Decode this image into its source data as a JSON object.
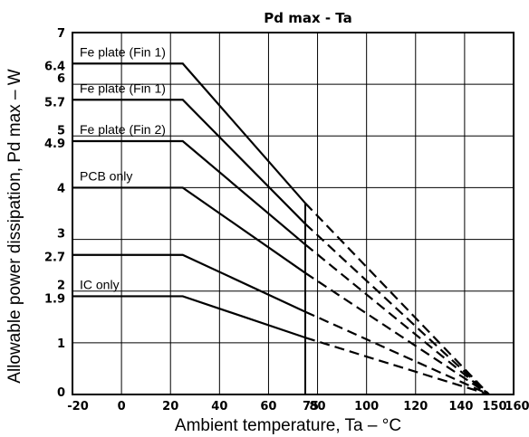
{
  "chart_data": {
    "type": "line",
    "title": "Pd max - Ta",
    "xlabel": "Ambient temperature, Ta – °C",
    "ylabel": "Allowable power dissipation, Pd max – W",
    "xlim": [
      -20,
      160
    ],
    "ylim": [
      0,
      7
    ],
    "x_ticks": [
      "-20",
      "0",
      "20",
      "40",
      "60",
      "75",
      "80",
      "100",
      "120",
      "140",
      "150",
      "160"
    ],
    "y_ticks": [
      "0",
      "1",
      "1.9",
      "2",
      "2.7",
      "3",
      "4",
      "4.9",
      "5",
      "5.7",
      "6",
      "6.4",
      "7"
    ],
    "grid": true,
    "cutoff_line_x": 75,
    "series": [
      {
        "name": "Fe plate (Fin 1)",
        "x": [
          -20,
          25,
          75,
          150
        ],
        "y": [
          6.4,
          6.4,
          3.7,
          0
        ]
      },
      {
        "name": "Fe plate (Fin 1)",
        "x": [
          -20,
          25,
          75,
          150
        ],
        "y": [
          5.7,
          5.7,
          3.3,
          0
        ]
      },
      {
        "name": "Fe plate (Fin 2)",
        "x": [
          -20,
          25,
          75,
          150
        ],
        "y": [
          4.9,
          4.9,
          2.9,
          0
        ]
      },
      {
        "name": "PCB only",
        "x": [
          -20,
          25,
          75,
          150
        ],
        "y": [
          4.0,
          4.0,
          2.35,
          0
        ]
      },
      {
        "name": "",
        "x": [
          -20,
          25,
          75,
          150
        ],
        "y": [
          2.7,
          2.7,
          1.6,
          0
        ]
      },
      {
        "name": "IC only",
        "x": [
          -20,
          25,
          75,
          150
        ],
        "y": [
          1.9,
          1.9,
          1.1,
          0
        ]
      }
    ]
  }
}
